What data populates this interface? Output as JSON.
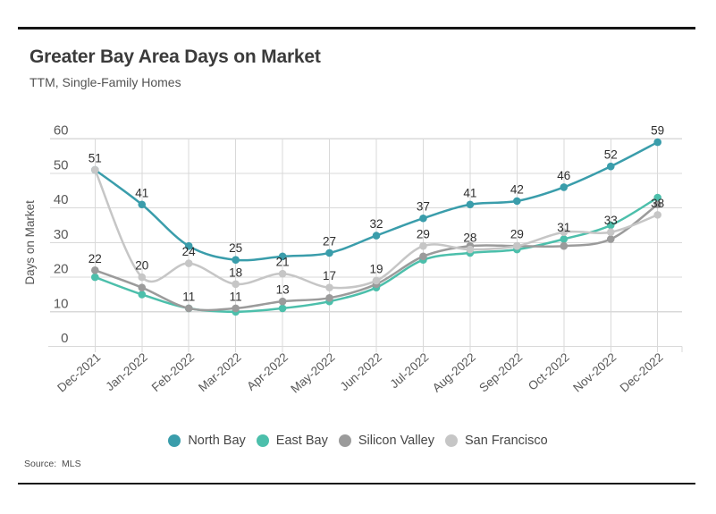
{
  "header": {
    "title": "Greater Bay Area Days on Market",
    "subtitle": "TTM, Single-Family Homes"
  },
  "footer": {
    "source": "Source:  MLS"
  },
  "colors": {
    "north_bay": "#3a9dab",
    "east_bay": "#4cbfab",
    "silicon_valley": "#9b9b9b",
    "san_francisco": "#c6c6c6",
    "grid": "#d9d9d9",
    "axis_text": "#595959",
    "axis_title_text": "#555555",
    "point_label_text": "#2d2d2d",
    "rule": "#161616"
  },
  "chart_data": {
    "type": "line",
    "title": "Greater Bay Area Days on Market",
    "subtitle": "TTM, Single-Family Homes",
    "xlabel": "",
    "ylabel": "Days on Market",
    "ylim": [
      0,
      60
    ],
    "yticks": [
      0,
      10,
      20,
      30,
      40,
      50,
      60
    ],
    "grid": true,
    "legend_position": "bottom",
    "marker": "circle",
    "smooth": true,
    "categories": [
      "Dec-2021",
      "Jan-2022",
      "Feb-2022",
      "Mar-2022",
      "Apr-2022",
      "May-2022",
      "Jun-2022",
      "Jul-2022",
      "Aug-2022",
      "Sep-2022",
      "Oct-2022",
      "Nov-2022",
      "Dec-2022"
    ],
    "series": [
      {
        "name": "North Bay",
        "color": "#3a9dab",
        "values": [
          51,
          41,
          29,
          25,
          26,
          27,
          32,
          37,
          41,
          42,
          46,
          52,
          59
        ],
        "point_labels": [
          51,
          41,
          null,
          25,
          null,
          27,
          32,
          37,
          41,
          42,
          46,
          52,
          59
        ]
      },
      {
        "name": "East Bay",
        "color": "#4cbfab",
        "values": [
          20,
          15,
          11,
          10,
          11,
          13,
          17,
          25,
          27,
          28,
          31,
          35,
          43
        ],
        "point_labels": [
          null,
          null,
          null,
          null,
          null,
          null,
          null,
          null,
          null,
          null,
          31,
          null,
          null
        ]
      },
      {
        "name": "Silicon Valley",
        "color": "#9b9b9b",
        "values": [
          22,
          17,
          11,
          11,
          13,
          14,
          18,
          26,
          29,
          29,
          29,
          31,
          41
        ],
        "point_labels": [
          22,
          null,
          11,
          11,
          13,
          null,
          null,
          null,
          null,
          null,
          null,
          null,
          null
        ]
      },
      {
        "name": "San Francisco",
        "color": "#c6c6c6",
        "values": [
          51,
          20,
          24,
          18,
          21,
          17,
          19,
          29,
          28,
          29,
          33,
          33,
          38
        ],
        "point_labels": [
          null,
          20,
          24,
          18,
          21,
          17,
          19,
          29,
          28,
          29,
          null,
          33,
          38
        ]
      }
    ]
  }
}
